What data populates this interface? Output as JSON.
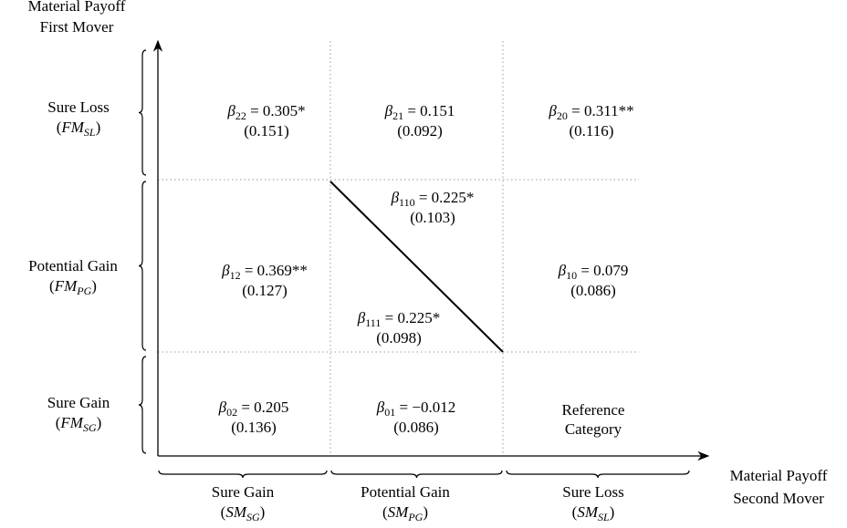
{
  "y_axis": {
    "title_lines": [
      "Material Payoff",
      "First Mover"
    ],
    "groups": [
      {
        "label": "Sure Loss",
        "abbr": {
          "open": "(",
          "base": "FM",
          "sub": "SL",
          "close": ")"
        }
      },
      {
        "label": "Potential Gain",
        "abbr": {
          "open": "(",
          "base": "FM",
          "sub": "PG",
          "close": ")"
        }
      },
      {
        "label": "Sure Gain",
        "abbr": {
          "open": "(",
          "base": "FM",
          "sub": "SG",
          "close": ")"
        }
      }
    ]
  },
  "x_axis": {
    "title_lines": [
      "Material Payoff",
      "Second Mover"
    ],
    "groups": [
      {
        "label": "Sure Gain",
        "abbr": {
          "open": "(",
          "base": "SM",
          "sub": "SG",
          "close": ")"
        }
      },
      {
        "label": "Potential Gain",
        "abbr": {
          "open": "(",
          "base": "SM",
          "sub": "PG",
          "close": ")"
        }
      },
      {
        "label": "Sure Loss",
        "abbr": {
          "open": "(",
          "base": "SM",
          "sub": "SL",
          "close": ")"
        }
      }
    ]
  },
  "cells": [
    {
      "symbol": "β",
      "sub": "22",
      "eq": " = 0.305*",
      "se": "(0.151)"
    },
    {
      "symbol": "β",
      "sub": "21",
      "eq": " = 0.151",
      "se": "(0.092)"
    },
    {
      "symbol": "β",
      "sub": "20",
      "eq": " = 0.311**",
      "se": "(0.116)"
    },
    {
      "symbol": "β",
      "sub": "12",
      "eq": " = 0.369**",
      "se": "(0.127)"
    },
    {
      "symbol": "β",
      "sub": "110",
      "eq": " = 0.225*",
      "se": "(0.103)"
    },
    {
      "symbol": "β",
      "sub": "111",
      "eq": " = 0.225*",
      "se": "(0.098)"
    },
    {
      "symbol": "β",
      "sub": "10",
      "eq": " = 0.079",
      "se": "(0.086)"
    },
    {
      "symbol": "β",
      "sub": "02",
      "eq": " = 0.205",
      "se": "(0.136)"
    },
    {
      "symbol": "β",
      "sub": "01",
      "eq": " = −0.012",
      "se": "(0.086)"
    },
    {
      "lines": [
        "Reference",
        "Category"
      ]
    }
  ]
}
